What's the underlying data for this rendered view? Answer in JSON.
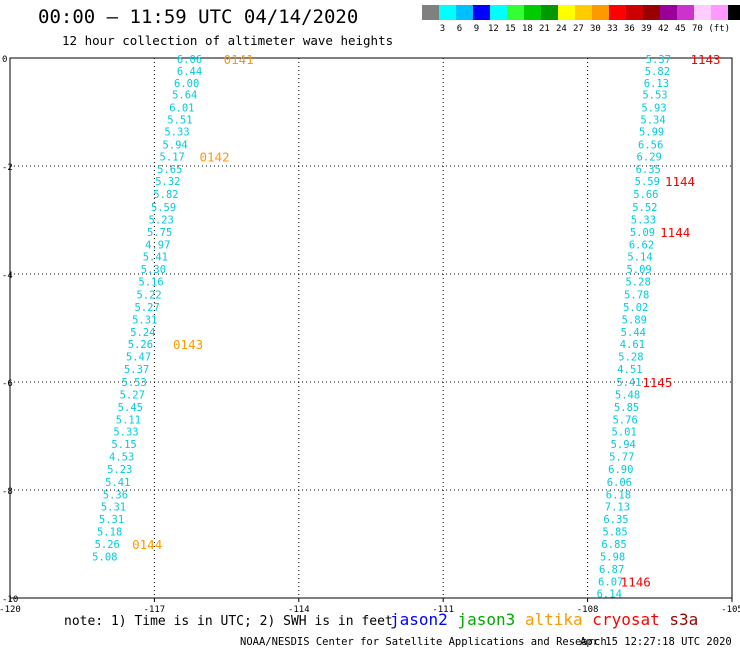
{
  "header": {
    "title": "00:00 – 11:59 UTC 04/14/2020",
    "subtitle": "12 hour collection of altimeter wave heights"
  },
  "color_scale": {
    "unit": "(ft)",
    "colors": [
      "#808080",
      "#00ffff",
      "#00bfff",
      "#0000ff",
      "#00ffff",
      "#33ff33",
      "#00cc00",
      "#009900",
      "#ffff00",
      "#ffcc00",
      "#ff9900",
      "#ff0000",
      "#cc0000",
      "#990000",
      "#990099",
      "#cc33cc",
      "#ffccff",
      "#ff99ff",
      "#000000"
    ],
    "labels": [
      "3",
      "6",
      "9",
      "12",
      "15",
      "18",
      "21",
      "24",
      "27",
      "30",
      "33",
      "36",
      "39",
      "42",
      "45",
      "70"
    ]
  },
  "chart_data": {
    "type": "scatter",
    "xlim": [
      -120,
      -105
    ],
    "ylim": [
      -10,
      0
    ],
    "x_ticks": [
      -120,
      -117,
      -114,
      -111,
      -108,
      -105
    ],
    "x_tick_labels": [
      "-120",
      "-117",
      "-114",
      "-111",
      "-108",
      "-105"
    ],
    "y_ticks": [
      0,
      -2,
      -4,
      -6,
      -8,
      -10
    ],
    "y_tick_labels": [
      "0",
      "-2",
      "-4",
      "-6",
      "-8",
      "-10"
    ],
    "grid": true,
    "series": [
      {
        "color": "#00ccdd",
        "points": [
          {
            "x": -116.27,
            "y": -0.02,
            "v": "6.06"
          },
          {
            "x": -116.27,
            "y": -0.24,
            "v": "6.44"
          },
          {
            "x": -116.33,
            "y": -0.46,
            "v": "6.00"
          },
          {
            "x": -116.37,
            "y": -0.68,
            "v": "5.64"
          },
          {
            "x": -116.43,
            "y": -0.92,
            "v": "6.01"
          },
          {
            "x": -116.47,
            "y": -1.14,
            "v": "5.51"
          },
          {
            "x": -116.53,
            "y": -1.36,
            "v": "5.33"
          },
          {
            "x": -116.57,
            "y": -1.6,
            "v": "5.94"
          },
          {
            "x": -116.63,
            "y": -1.82,
            "v": "5.17"
          },
          {
            "x": -116.68,
            "y": -2.06,
            "v": "5.65"
          },
          {
            "x": -116.72,
            "y": -2.28,
            "v": "5.32"
          },
          {
            "x": -116.76,
            "y": -2.52,
            "v": "5.82"
          },
          {
            "x": -116.81,
            "y": -2.76,
            "v": "5.59"
          },
          {
            "x": -116.86,
            "y": -2.99,
            "v": "5.23"
          },
          {
            "x": -116.89,
            "y": -3.22,
            "v": "5.75"
          },
          {
            "x": -116.93,
            "y": -3.45,
            "v": "4.97"
          },
          {
            "x": -116.98,
            "y": -3.68,
            "v": "5.41"
          },
          {
            "x": -117.02,
            "y": -3.91,
            "v": "5.30"
          },
          {
            "x": -117.07,
            "y": -4.14,
            "v": "5.16"
          },
          {
            "x": -117.11,
            "y": -4.38,
            "v": "5.22"
          },
          {
            "x": -117.15,
            "y": -4.61,
            "v": "5.27"
          },
          {
            "x": -117.2,
            "y": -4.84,
            "v": "5.31"
          },
          {
            "x": -117.24,
            "y": -5.07,
            "v": "5.24"
          },
          {
            "x": -117.29,
            "y": -5.3,
            "v": "5.26"
          },
          {
            "x": -117.33,
            "y": -5.53,
            "v": "5.47"
          },
          {
            "x": -117.37,
            "y": -5.76,
            "v": "5.37"
          },
          {
            "x": -117.42,
            "y": -6.0,
            "v": "5.53"
          },
          {
            "x": -117.46,
            "y": -6.23,
            "v": "5.27"
          },
          {
            "x": -117.5,
            "y": -6.46,
            "v": "5.45"
          },
          {
            "x": -117.54,
            "y": -6.69,
            "v": "5.11"
          },
          {
            "x": -117.59,
            "y": -6.92,
            "v": "5.33"
          },
          {
            "x": -117.63,
            "y": -7.15,
            "v": "5.15"
          },
          {
            "x": -117.68,
            "y": -7.38,
            "v": "4.53"
          },
          {
            "x": -117.72,
            "y": -7.61,
            "v": "5.23"
          },
          {
            "x": -117.76,
            "y": -7.85,
            "v": "5.41"
          },
          {
            "x": -117.81,
            "y": -8.08,
            "v": "5.36"
          },
          {
            "x": -117.85,
            "y": -8.31,
            "v": "5.31"
          },
          {
            "x": -117.89,
            "y": -8.54,
            "v": "5.31"
          },
          {
            "x": -117.93,
            "y": -8.77,
            "v": "5.18"
          },
          {
            "x": -117.98,
            "y": -9.0,
            "v": "5.26"
          },
          {
            "x": -118.03,
            "y": -9.23,
            "v": "5.08"
          }
        ]
      },
      {
        "color": "#00ccdd",
        "points": [
          {
            "x": -106.53,
            "y": -0.02,
            "v": "5.37"
          },
          {
            "x": -106.55,
            "y": -0.24,
            "v": "5.82"
          },
          {
            "x": -106.57,
            "y": -0.46,
            "v": "6.13"
          },
          {
            "x": -106.6,
            "y": -0.68,
            "v": "5.53"
          },
          {
            "x": -106.62,
            "y": -0.92,
            "v": "5.93"
          },
          {
            "x": -106.64,
            "y": -1.14,
            "v": "5.34"
          },
          {
            "x": -106.67,
            "y": -1.36,
            "v": "5.99"
          },
          {
            "x": -106.69,
            "y": -1.6,
            "v": "6.56"
          },
          {
            "x": -106.72,
            "y": -1.82,
            "v": "6.29"
          },
          {
            "x": -106.74,
            "y": -2.06,
            "v": "6.35"
          },
          {
            "x": -106.76,
            "y": -2.28,
            "v": "5.59"
          },
          {
            "x": -106.79,
            "y": -2.52,
            "v": "5.66"
          },
          {
            "x": -106.81,
            "y": -2.76,
            "v": "5.52"
          },
          {
            "x": -106.84,
            "y": -2.99,
            "v": "5.33"
          },
          {
            "x": -106.86,
            "y": -3.22,
            "v": "5.09"
          },
          {
            "x": -106.88,
            "y": -3.45,
            "v": "6.62"
          },
          {
            "x": -106.91,
            "y": -3.68,
            "v": "5.14"
          },
          {
            "x": -106.93,
            "y": -3.91,
            "v": "5.09"
          },
          {
            "x": -106.95,
            "y": -4.14,
            "v": "5.28"
          },
          {
            "x": -106.98,
            "y": -4.38,
            "v": "5.78"
          },
          {
            "x": -107.0,
            "y": -4.61,
            "v": "5.02"
          },
          {
            "x": -107.03,
            "y": -4.84,
            "v": "5.89"
          },
          {
            "x": -107.05,
            "y": -5.07,
            "v": "5.44"
          },
          {
            "x": -107.07,
            "y": -5.3,
            "v": "4.61"
          },
          {
            "x": -107.1,
            "y": -5.53,
            "v": "5.28"
          },
          {
            "x": -107.12,
            "y": -5.76,
            "v": "4.51"
          },
          {
            "x": -107.14,
            "y": -6.0,
            "v": "5.41"
          },
          {
            "x": -107.17,
            "y": -6.23,
            "v": "5.48"
          },
          {
            "x": -107.19,
            "y": -6.46,
            "v": "5.85"
          },
          {
            "x": -107.22,
            "y": -6.69,
            "v": "5.76"
          },
          {
            "x": -107.24,
            "y": -6.92,
            "v": "5.01"
          },
          {
            "x": -107.26,
            "y": -7.15,
            "v": "5.94"
          },
          {
            "x": -107.29,
            "y": -7.38,
            "v": "5.77"
          },
          {
            "x": -107.31,
            "y": -7.61,
            "v": "6.90"
          },
          {
            "x": -107.34,
            "y": -7.85,
            "v": "6.06"
          },
          {
            "x": -107.36,
            "y": -8.08,
            "v": "6.18"
          },
          {
            "x": -107.38,
            "y": -8.31,
            "v": "7.13"
          },
          {
            "x": -107.41,
            "y": -8.54,
            "v": "6.35"
          },
          {
            "x": -107.43,
            "y": -8.77,
            "v": "5.85"
          },
          {
            "x": -107.45,
            "y": -9.0,
            "v": "6.85"
          },
          {
            "x": -107.48,
            "y": -9.23,
            "v": "5.98"
          },
          {
            "x": -107.5,
            "y": -9.46,
            "v": "6.87"
          },
          {
            "x": -107.52,
            "y": -9.69,
            "v": "6.07"
          },
          {
            "x": -107.55,
            "y": -9.92,
            "v": "6.14"
          }
        ]
      }
    ],
    "time_labels": [
      {
        "x": -115.25,
        "y": -0.02,
        "text": "0141",
        "color": "#ff9900"
      },
      {
        "x": -115.75,
        "y": -1.82,
        "text": "0142",
        "color": "#ff9900"
      },
      {
        "x": -116.3,
        "y": -5.3,
        "text": "0143",
        "color": "#ff9900"
      },
      {
        "x": -117.15,
        "y": -9.0,
        "text": "0144",
        "color": "#ff9900"
      },
      {
        "x": -105.55,
        "y": -0.02,
        "text": "1143",
        "color": "#ff0000"
      },
      {
        "x": -106.08,
        "y": -2.28,
        "text": "1144",
        "color": "#ff0000"
      },
      {
        "x": -106.18,
        "y": -3.22,
        "text": "1144",
        "color": "#ff0000"
      },
      {
        "x": -106.55,
        "y": -6.0,
        "text": "1145",
        "color": "#ff0000"
      },
      {
        "x": -107.0,
        "y": -9.69,
        "text": "1146",
        "color": "#ff0000"
      }
    ]
  },
  "footer": {
    "note": "note: 1) Time is in UTC; 2) SWH is in feet",
    "satellites": [
      {
        "name": "jason2",
        "color": "#0000ff"
      },
      {
        "name": "jason3",
        "color": "#00aa00"
      },
      {
        "name": "altika",
        "color": "#ff9900"
      },
      {
        "name": "cryosat",
        "color": "#ff0000"
      },
      {
        "name": "s3a",
        "color": "#990000"
      }
    ],
    "credit": "NOAA/NESDIS Center for Satellite Applications and Research",
    "timestamp": "Apr 15 12:27:18 UTC 2020"
  }
}
